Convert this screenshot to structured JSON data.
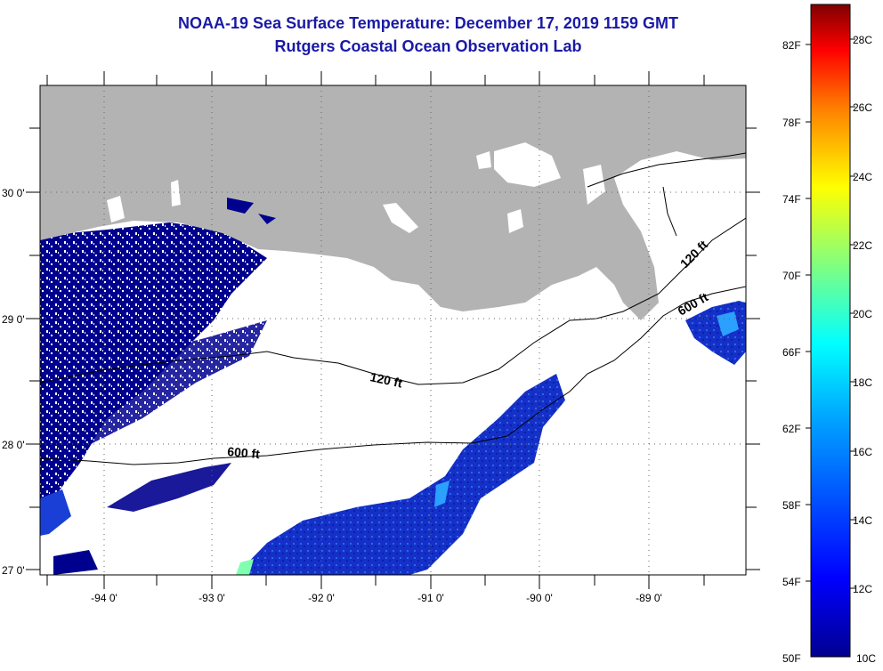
{
  "header": {
    "title": "NOAA-19 Sea Surface Temperature:  December 17, 2019 1159 GMT",
    "subtitle": "Rutgers Coastal Ocean Observation Lab"
  },
  "map": {
    "lat_labels": [
      "30 0'",
      "29 0'",
      "28 0'",
      "27 0'"
    ],
    "lon_labels": [
      "-94 0'",
      "-93 0'",
      "-92 0'",
      "-91 0'",
      "-90 0'",
      "-89 0'"
    ],
    "contour_labels": [
      "120 ft",
      "600 ft",
      "120 ft",
      "600 ft"
    ],
    "colors": {
      "land": "#b3b3b3",
      "cold": "#00008f",
      "ocean_blue": "#1a3fd6"
    }
  },
  "colorbar": {
    "f_labels": [
      "82F",
      "78F",
      "74F",
      "70F",
      "66F",
      "62F",
      "58F",
      "54F",
      "50F"
    ],
    "c_labels": [
      "28C",
      "26C",
      "24C",
      "22C",
      "20C",
      "18C",
      "16C",
      "14C",
      "12C",
      "10C"
    ],
    "colors": [
      "#00008f",
      "#0000ff",
      "#0080ff",
      "#00ffff",
      "#80ff80",
      "#ffff00",
      "#ff8000",
      "#ff0000",
      "#800000"
    ]
  }
}
